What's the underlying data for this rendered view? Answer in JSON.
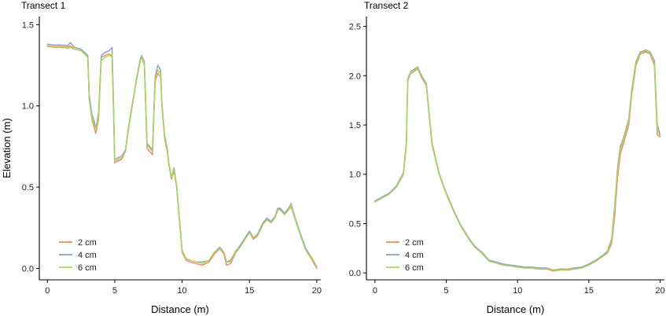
{
  "chart_data": [
    {
      "type": "line",
      "title": "Transect 1",
      "xlabel": "Distance (m)",
      "ylabel": "Elevation (m)",
      "xlim": [
        -0.6,
        20.3
      ],
      "ylim": [
        -0.07,
        1.55
      ],
      "xticks": [
        0,
        5,
        10,
        15,
        20
      ],
      "yticks": [
        0.0,
        0.5,
        1.0,
        1.5
      ],
      "ytick_labels": [
        "0.0",
        "0.5",
        "1.0",
        "1.5"
      ],
      "legend": "bottom-left",
      "grid": false,
      "series": [
        {
          "name": "2 cm",
          "color": "#f4845f",
          "x": [
            0,
            0.5,
            1,
            1.5,
            1.7,
            2,
            2.5,
            3,
            3.1,
            3.3,
            3.5,
            3.6,
            3.8,
            4,
            4.3,
            4.6,
            4.8,
            4.9,
            5,
            5.2,
            5.5,
            5.8,
            6,
            6.3,
            6.6,
            6.9,
            7,
            7.2,
            7.3,
            7.4,
            7.6,
            7.8,
            8,
            8.2,
            8.4,
            8.5,
            8.7,
            8.9,
            9,
            9.2,
            9.4,
            9.6,
            9.8,
            10,
            10.3,
            10.6,
            11,
            11.5,
            12,
            12.4,
            12.8,
            13.1,
            13.3,
            13.6,
            14,
            14.3,
            14.6,
            15,
            15.3,
            15.6,
            16,
            16.3,
            16.6,
            16.9,
            17.1,
            17.3,
            17.6,
            17.9,
            18.1,
            18.4,
            18.8,
            19.2,
            19.6,
            20
          ],
          "y": [
            1.37,
            1.365,
            1.365,
            1.36,
            1.37,
            1.35,
            1.34,
            1.3,
            1.05,
            0.92,
            0.86,
            0.83,
            0.92,
            1.3,
            1.31,
            1.32,
            1.3,
            1.0,
            0.65,
            0.66,
            0.67,
            0.72,
            0.85,
            1.0,
            1.15,
            1.28,
            1.3,
            1.25,
            1.0,
            0.74,
            0.72,
            0.7,
            1.15,
            1.2,
            1.18,
            1.0,
            0.8,
            0.72,
            0.65,
            0.55,
            0.6,
            0.5,
            0.3,
            0.1,
            0.05,
            0.04,
            0.03,
            0.02,
            0.04,
            0.09,
            0.12,
            0.09,
            0.02,
            0.03,
            0.1,
            0.13,
            0.17,
            0.22,
            0.18,
            0.2,
            0.27,
            0.3,
            0.28,
            0.31,
            0.36,
            0.37,
            0.33,
            0.36,
            0.38,
            0.3,
            0.2,
            0.11,
            0.06,
            0.0
          ]
        },
        {
          "name": "4 cm",
          "color": "#8d9bd1",
          "x": [
            0,
            0.5,
            1,
            1.5,
            1.7,
            2,
            2.5,
            3,
            3.1,
            3.3,
            3.5,
            3.6,
            3.8,
            4,
            4.3,
            4.6,
            4.8,
            4.9,
            5,
            5.2,
            5.5,
            5.8,
            6,
            6.3,
            6.6,
            6.9,
            7,
            7.2,
            7.3,
            7.4,
            7.6,
            7.8,
            8,
            8.2,
            8.4,
            8.5,
            8.7,
            8.9,
            9,
            9.2,
            9.4,
            9.6,
            9.8,
            10,
            10.3,
            10.6,
            11,
            11.5,
            12,
            12.4,
            12.8,
            13.1,
            13.3,
            13.6,
            14,
            14.3,
            14.6,
            15,
            15.3,
            15.6,
            16,
            16.3,
            16.6,
            16.9,
            17.1,
            17.3,
            17.6,
            17.9,
            18.1,
            18.4,
            18.8,
            19.2,
            19.6,
            20
          ],
          "y": [
            1.38,
            1.375,
            1.375,
            1.37,
            1.39,
            1.36,
            1.35,
            1.31,
            1.07,
            0.95,
            0.9,
            0.86,
            0.96,
            1.31,
            1.33,
            1.34,
            1.36,
            1.05,
            0.67,
            0.68,
            0.69,
            0.73,
            0.86,
            1.01,
            1.16,
            1.29,
            1.31,
            1.27,
            1.02,
            0.77,
            0.75,
            0.73,
            1.18,
            1.25,
            1.22,
            1.02,
            0.82,
            0.74,
            0.66,
            0.56,
            0.62,
            0.51,
            0.31,
            0.11,
            0.06,
            0.05,
            0.04,
            0.04,
            0.05,
            0.1,
            0.13,
            0.1,
            0.04,
            0.05,
            0.11,
            0.14,
            0.18,
            0.23,
            0.19,
            0.21,
            0.28,
            0.31,
            0.29,
            0.32,
            0.37,
            0.37,
            0.34,
            0.37,
            0.4,
            0.31,
            0.21,
            0.12,
            0.07,
            0.01
          ]
        },
        {
          "name": "6 cm",
          "color": "#a6d854",
          "x": [
            0,
            0.5,
            1,
            1.5,
            1.7,
            2,
            2.5,
            3,
            3.1,
            3.3,
            3.5,
            3.6,
            3.8,
            4,
            4.3,
            4.6,
            4.8,
            4.9,
            5,
            5.2,
            5.5,
            5.8,
            6,
            6.3,
            6.6,
            6.9,
            7,
            7.2,
            7.3,
            7.4,
            7.6,
            7.8,
            8,
            8.2,
            8.4,
            8.5,
            8.7,
            8.9,
            9,
            9.2,
            9.4,
            9.6,
            9.8,
            10,
            10.3,
            10.6,
            11,
            11.5,
            12,
            12.4,
            12.8,
            13.1,
            13.3,
            13.6,
            14,
            14.3,
            14.6,
            15,
            15.3,
            15.6,
            16,
            16.3,
            16.6,
            16.9,
            17.1,
            17.3,
            17.6,
            17.9,
            18.1,
            18.4,
            18.8,
            19.2,
            19.6,
            20
          ],
          "y": [
            1.365,
            1.36,
            1.36,
            1.355,
            1.36,
            1.35,
            1.34,
            1.3,
            1.04,
            0.93,
            0.88,
            0.85,
            0.94,
            1.28,
            1.3,
            1.31,
            1.32,
            1.02,
            0.66,
            0.67,
            0.68,
            0.72,
            0.85,
            1.0,
            1.15,
            1.28,
            1.3,
            1.26,
            1.01,
            0.76,
            0.74,
            0.72,
            1.16,
            1.22,
            1.2,
            1.01,
            0.81,
            0.73,
            0.66,
            0.56,
            0.61,
            0.51,
            0.3,
            0.11,
            0.06,
            0.05,
            0.04,
            0.03,
            0.05,
            0.1,
            0.12,
            0.1,
            0.04,
            0.04,
            0.11,
            0.13,
            0.17,
            0.22,
            0.19,
            0.2,
            0.27,
            0.3,
            0.28,
            0.31,
            0.36,
            0.36,
            0.33,
            0.36,
            0.39,
            0.3,
            0.2,
            0.11,
            0.07,
            0.01
          ]
        }
      ]
    },
    {
      "type": "line",
      "title": "Transect 2",
      "xlabel": "Distance (m)",
      "ylabel": "",
      "xlim": [
        -0.6,
        20.3
      ],
      "ylim": [
        -0.07,
        2.6
      ],
      "xticks": [
        0,
        5,
        10,
        15,
        20
      ],
      "yticks": [
        0.0,
        0.5,
        1.0,
        1.5,
        2.0,
        2.5
      ],
      "ytick_labels": [
        "0.0",
        "0.5",
        "1.0",
        "1.5",
        "2.0",
        "2.5"
      ],
      "legend": "bottom-left",
      "grid": false,
      "series": [
        {
          "name": "2 cm",
          "color": "#f4845f",
          "x": [
            0,
            0.5,
            1,
            1.5,
            2,
            2.2,
            2.3,
            2.5,
            2.8,
            3,
            3.2,
            3.4,
            3.6,
            4,
            4.5,
            5,
            5.5,
            6,
            6.5,
            7,
            7.5,
            8,
            8.5,
            9,
            9.5,
            10,
            10.5,
            11,
            11.5,
            12,
            12.5,
            13,
            13.5,
            14,
            14.5,
            15,
            15.5,
            16,
            16.3,
            16.6,
            16.8,
            17,
            17.2,
            17.5,
            17.8,
            18,
            18.3,
            18.6,
            19,
            19.3,
            19.6,
            19.8,
            20
          ],
          "y": [
            0.72,
            0.76,
            0.8,
            0.87,
            1.0,
            1.3,
            1.95,
            2.02,
            2.05,
            2.07,
            2.0,
            1.95,
            1.9,
            1.3,
            1.0,
            0.8,
            0.63,
            0.48,
            0.36,
            0.26,
            0.2,
            0.12,
            0.1,
            0.08,
            0.07,
            0.06,
            0.05,
            0.05,
            0.04,
            0.04,
            0.02,
            0.03,
            0.03,
            0.04,
            0.05,
            0.08,
            0.12,
            0.17,
            0.2,
            0.3,
            0.55,
            0.95,
            1.2,
            1.35,
            1.5,
            1.8,
            2.1,
            2.22,
            2.24,
            2.22,
            2.1,
            1.4,
            1.38
          ]
        },
        {
          "name": "4 cm",
          "color": "#8d9bd1",
          "x": [
            0,
            0.5,
            1,
            1.5,
            2,
            2.2,
            2.3,
            2.5,
            2.8,
            3,
            3.2,
            3.4,
            3.6,
            4,
            4.5,
            5,
            5.5,
            6,
            6.5,
            7,
            7.5,
            8,
            8.5,
            9,
            9.5,
            10,
            10.5,
            11,
            11.5,
            12,
            12.5,
            13,
            13.5,
            14,
            14.5,
            15,
            15.5,
            16,
            16.3,
            16.6,
            16.8,
            17,
            17.2,
            17.5,
            17.8,
            18,
            18.3,
            18.6,
            19,
            19.3,
            19.6,
            19.8,
            20
          ],
          "y": [
            0.73,
            0.77,
            0.81,
            0.88,
            1.02,
            1.32,
            1.97,
            2.04,
            2.07,
            2.09,
            2.02,
            1.97,
            1.92,
            1.32,
            1.01,
            0.81,
            0.64,
            0.49,
            0.37,
            0.27,
            0.21,
            0.13,
            0.11,
            0.09,
            0.08,
            0.07,
            0.06,
            0.06,
            0.05,
            0.05,
            0.03,
            0.04,
            0.04,
            0.05,
            0.06,
            0.09,
            0.13,
            0.18,
            0.22,
            0.35,
            0.65,
            1.05,
            1.28,
            1.4,
            1.56,
            1.85,
            2.14,
            2.24,
            2.26,
            2.24,
            2.15,
            1.5,
            1.4
          ]
        },
        {
          "name": "6 cm",
          "color": "#a6d854",
          "x": [
            0,
            0.5,
            1,
            1.5,
            2,
            2.2,
            2.3,
            2.5,
            2.8,
            3,
            3.2,
            3.4,
            3.6,
            4,
            4.5,
            5,
            5.5,
            6,
            6.5,
            7,
            7.5,
            8,
            8.5,
            9,
            9.5,
            10,
            10.5,
            11,
            11.5,
            12,
            12.5,
            13,
            13.5,
            14,
            14.5,
            15,
            15.5,
            16,
            16.3,
            16.6,
            16.8,
            17,
            17.2,
            17.5,
            17.8,
            18,
            18.3,
            18.6,
            19,
            19.3,
            19.6,
            19.8,
            20
          ],
          "y": [
            0.72,
            0.76,
            0.8,
            0.87,
            1.01,
            1.31,
            1.96,
            2.03,
            2.06,
            2.08,
            2.01,
            1.96,
            1.91,
            1.31,
            1.0,
            0.8,
            0.63,
            0.48,
            0.36,
            0.26,
            0.2,
            0.12,
            0.1,
            0.08,
            0.07,
            0.06,
            0.05,
            0.05,
            0.04,
            0.04,
            0.03,
            0.03,
            0.04,
            0.04,
            0.05,
            0.08,
            0.12,
            0.17,
            0.21,
            0.33,
            0.62,
            1.02,
            1.25,
            1.38,
            1.54,
            1.83,
            2.12,
            2.23,
            2.25,
            2.23,
            2.12,
            1.45,
            1.39
          ]
        }
      ]
    }
  ]
}
